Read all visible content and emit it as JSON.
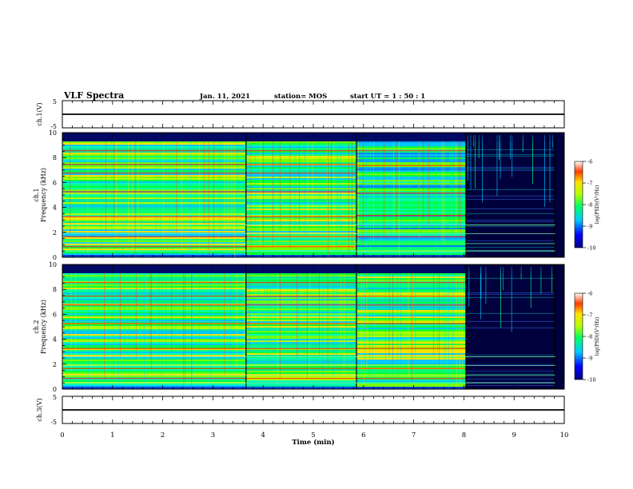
{
  "header": {
    "title": "VLF Spectra",
    "date": "Jan. 11, 2021",
    "station": "station= MOS",
    "start": "start UT =  1 : 50 : 1"
  },
  "colorbar": {
    "label": "log(PSD)(V²/Hz)",
    "ticks": [
      "-6",
      "-7",
      "-8",
      "-9",
      "-10"
    ]
  },
  "chart_data": [
    {
      "type": "line",
      "panel": "ch1-waveform",
      "ylabel": "ch.1(V)",
      "ylim": [
        -5,
        5
      ],
      "yticks": [
        "5",
        "-5"
      ],
      "xlim": [
        0,
        10
      ],
      "series": [
        {
          "values": [
            0,
            0
          ]
        }
      ]
    },
    {
      "type": "heatmap",
      "panel": "ch1-spectrogram",
      "ylabel": "ch.1\nFrequency (kHz)",
      "ylabel_line1": "ch.1",
      "ylabel_line2": "Frequency (kHz)",
      "ylim": [
        0,
        10
      ],
      "yticks": [
        "0",
        "2",
        "4",
        "6",
        "8",
        "10"
      ],
      "xlim": [
        0,
        10
      ],
      "zlim": [
        -10,
        -6
      ],
      "segments": [
        {
          "x": [
            0,
            3.67
          ],
          "level": "high"
        },
        {
          "x": [
            3.67,
            5.87
          ],
          "level": "high"
        },
        {
          "x": [
            5.87,
            8.05
          ],
          "level": "medium"
        },
        {
          "x": [
            8.05,
            9.82
          ],
          "level": "low"
        }
      ]
    },
    {
      "type": "heatmap",
      "panel": "ch2-spectrogram",
      "ylabel_line1": "ch.2",
      "ylabel_line2": "Frequency (kHz)",
      "ylim": [
        0,
        10
      ],
      "yticks": [
        "0",
        "2",
        "4",
        "6",
        "8",
        "10"
      ],
      "xlim": [
        0,
        10
      ],
      "zlim": [
        -10,
        -6
      ],
      "segments": [
        {
          "x": [
            0,
            3.67
          ],
          "level": "high"
        },
        {
          "x": [
            3.67,
            5.87
          ],
          "level": "high"
        },
        {
          "x": [
            5.87,
            8.05
          ],
          "level": "high"
        },
        {
          "x": [
            8.05,
            9.82
          ],
          "level": "low"
        }
      ]
    },
    {
      "type": "line",
      "panel": "ch3-waveform",
      "ylabel": "ch.3(V)",
      "ylim": [
        -5,
        5
      ],
      "yticks": [
        "5",
        "-5"
      ],
      "xlim": [
        0,
        10
      ],
      "xlabel": "Time (min)",
      "xticks": [
        "0",
        "1",
        "2",
        "3",
        "4",
        "5",
        "6",
        "7",
        "8",
        "9",
        "10"
      ],
      "series": [
        {
          "values": [
            0,
            0
          ]
        }
      ]
    }
  ]
}
